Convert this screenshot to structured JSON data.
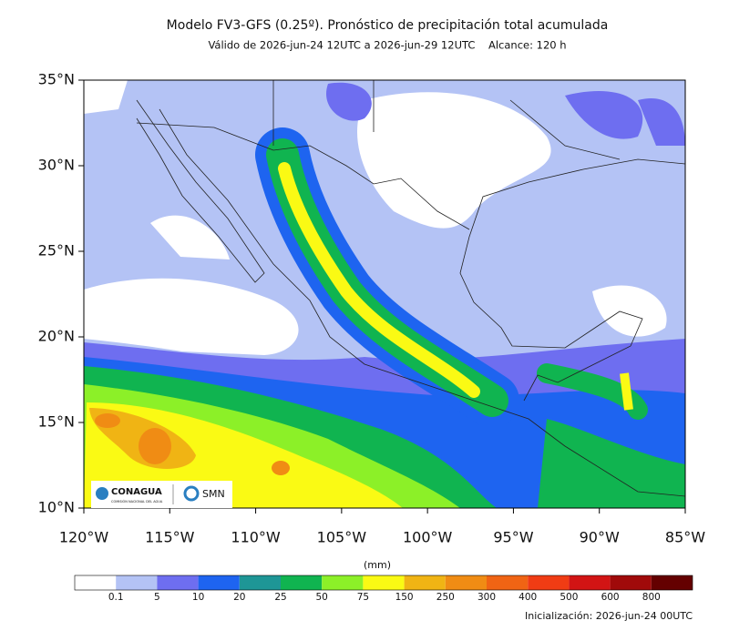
{
  "title": "Modelo FV3-GFS (0.25º). Pronóstico de precipitación total acumulada",
  "subtitle": "Válido de 2026-jun-24 12UTC a 2026-jun-29 12UTC    Alcance: 120 h",
  "map": {
    "lat_ticks": [
      {
        "value": 35,
        "label": "35°N"
      },
      {
        "value": 30,
        "label": "30°N"
      },
      {
        "value": 25,
        "label": "25°N"
      },
      {
        "value": 20,
        "label": "20°N"
      },
      {
        "value": 15,
        "label": "15°N"
      },
      {
        "value": 10,
        "label": "10°N"
      }
    ],
    "lon_ticks": [
      {
        "value": -120,
        "label": "120°W"
      },
      {
        "value": -115,
        "label": "115°W"
      },
      {
        "value": -110,
        "label": "110°W"
      },
      {
        "value": -105,
        "label": "105°W"
      },
      {
        "value": -100,
        "label": "100°W"
      },
      {
        "value": -95,
        "label": "95°W"
      },
      {
        "value": -90,
        "label": "90°W"
      },
      {
        "value": -85,
        "label": "85°W"
      }
    ],
    "latlim": [
      10,
      35
    ],
    "lonlim": [
      -120,
      -85
    ]
  },
  "colorbar": {
    "unit": "(mm)",
    "colors": [
      "#ffffff",
      "#b4c3f5",
      "#6e6ef0",
      "#1e64f0",
      "#1e9696",
      "#10b450",
      "#8cf028",
      "#fafa14",
      "#f0b414",
      "#f08c14",
      "#f06414",
      "#f03c14",
      "#d21414",
      "#a00a0a",
      "#640000"
    ],
    "labels": [
      0.1,
      5,
      10,
      20,
      25,
      50,
      75,
      150,
      250,
      300,
      400,
      500,
      600,
      800
    ]
  },
  "logos": {
    "conagua": "CONAGUA",
    "conagua_sub": "COMISIÓN NACIONAL DEL AGUA",
    "smn": "SMN"
  },
  "init": "Inicialización: 2026-jun-24 00UTC"
}
